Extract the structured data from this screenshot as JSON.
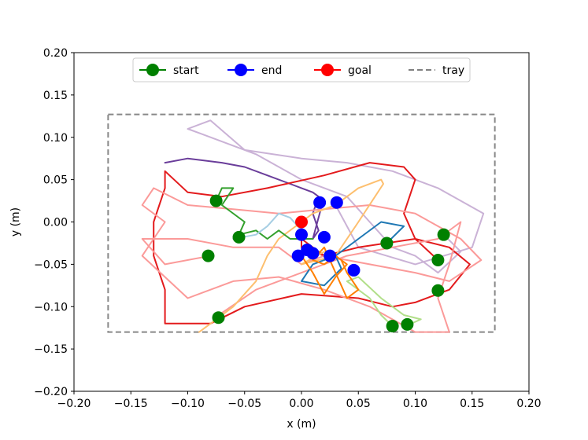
{
  "chart_data": {
    "type": "line",
    "title": "",
    "xlabel": "x (m)",
    "ylabel": "y (m)",
    "xlim": [
      -0.2,
      0.2
    ],
    "ylim": [
      -0.2,
      0.2
    ],
    "xticks": [
      -0.2,
      -0.15,
      -0.1,
      -0.05,
      0.0,
      0.05,
      0.1,
      0.15,
      0.2
    ],
    "yticks": [
      -0.2,
      -0.15,
      -0.1,
      -0.05,
      0.0,
      0.05,
      0.1,
      0.15,
      0.2
    ],
    "xtick_labels": [
      "−0.20",
      "−0.15",
      "−0.10",
      "−0.05",
      "0.00",
      "0.05",
      "0.10",
      "0.15",
      "0.20"
    ],
    "ytick_labels": [
      "−0.20",
      "−0.15",
      "−0.10",
      "−0.05",
      "0.00",
      "0.05",
      "0.10",
      "0.15",
      "0.20"
    ],
    "grid": false,
    "legend_placement": "top-center",
    "legend": [
      {
        "label": "start",
        "color": "#008000",
        "style": "marker-line"
      },
      {
        "label": "end",
        "color": "#0000ff",
        "style": "marker-line"
      },
      {
        "label": "goal",
        "color": "#ff0000",
        "style": "marker-line"
      },
      {
        "label": "tray",
        "color": "#808080",
        "style": "dashed"
      }
    ],
    "tray": {
      "x": [
        -0.17,
        0.17
      ],
      "y": [
        -0.13,
        0.127
      ],
      "color": "#888888"
    },
    "goal": {
      "x": 0.0,
      "y": 0.0
    },
    "series": [
      {
        "color": "#cab2d6",
        "points": [
          [
            0.125,
            -0.015
          ],
          [
            0.14,
            -0.035
          ],
          [
            0.12,
            -0.06
          ],
          [
            0.1,
            -0.04
          ],
          [
            0.08,
            -0.03
          ],
          [
            0.06,
            0.0
          ],
          [
            0.04,
            0.03
          ],
          [
            0.0,
            0.05
          ],
          [
            -0.04,
            0.08
          ],
          [
            -0.08,
            0.1
          ],
          [
            -0.1,
            0.11
          ],
          [
            -0.08,
            0.12
          ],
          [
            -0.05,
            0.085
          ],
          [
            0.0,
            0.075
          ],
          [
            0.04,
            0.07
          ],
          [
            0.08,
            0.06
          ],
          [
            0.12,
            0.04
          ],
          [
            0.16,
            0.01
          ],
          [
            0.15,
            -0.03
          ],
          [
            0.1,
            -0.05
          ],
          [
            0.05,
            -0.03
          ],
          [
            0.03,
            0.02
          ]
        ]
      },
      {
        "color": "#6a3d9a",
        "points": [
          [
            -0.12,
            0.07
          ],
          [
            -0.1,
            0.075
          ],
          [
            -0.07,
            0.07
          ],
          [
            -0.05,
            0.065
          ],
          [
            -0.03,
            0.055
          ],
          [
            -0.01,
            0.045
          ],
          [
            0.0,
            0.04
          ],
          [
            0.01,
            0.035
          ],
          [
            0.015,
            0.03
          ],
          [
            0.01,
            0.01
          ],
          [
            0.015,
            -0.01
          ],
          [
            0.01,
            -0.02
          ],
          [
            0.018,
            0.02
          ]
        ]
      },
      {
        "color": "#e31a1c",
        "points": [
          [
            0.12,
            -0.045
          ],
          [
            0.1,
            -0.02
          ],
          [
            0.09,
            0.01
          ],
          [
            0.1,
            0.05
          ],
          [
            0.09,
            0.065
          ],
          [
            0.06,
            0.07
          ],
          [
            0.02,
            0.055
          ],
          [
            -0.03,
            0.04
          ],
          [
            -0.07,
            0.03
          ],
          [
            -0.1,
            0.035
          ],
          [
            -0.12,
            0.06
          ],
          [
            -0.12,
            0.04
          ],
          [
            -0.13,
            0.0
          ],
          [
            -0.13,
            -0.04
          ],
          [
            -0.12,
            -0.08
          ],
          [
            -0.12,
            -0.12
          ],
          [
            -0.08,
            -0.12
          ],
          [
            -0.05,
            -0.1
          ],
          [
            0.0,
            -0.085
          ],
          [
            0.05,
            -0.09
          ],
          [
            0.08,
            -0.1
          ],
          [
            0.1,
            -0.095
          ],
          [
            0.13,
            -0.08
          ],
          [
            0.148,
            -0.05
          ],
          [
            0.13,
            -0.03
          ],
          [
            0.1,
            -0.02
          ],
          [
            0.05,
            -0.03
          ],
          [
            0.02,
            -0.04
          ],
          [
            0.0,
            -0.03
          ],
          [
            0.0,
            -0.02
          ],
          [
            0.02,
            -0.04
          ]
        ]
      },
      {
        "color": "#fb9a99",
        "points": [
          [
            -0.075,
            -0.112
          ],
          [
            -0.04,
            -0.08
          ],
          [
            0.0,
            -0.06
          ],
          [
            0.04,
            -0.04
          ],
          [
            0.08,
            -0.03
          ],
          [
            0.12,
            -0.02
          ],
          [
            0.14,
            0.0
          ],
          [
            0.13,
            -0.05
          ],
          [
            0.12,
            -0.09
          ],
          [
            0.13,
            -0.13
          ],
          [
            0.1,
            -0.13
          ],
          [
            0.06,
            -0.1
          ],
          [
            0.02,
            -0.08
          ],
          [
            -0.02,
            -0.065
          ],
          [
            -0.06,
            -0.07
          ],
          [
            -0.1,
            -0.09
          ],
          [
            -0.14,
            -0.04
          ],
          [
            -0.12,
            0.0
          ],
          [
            -0.14,
            0.02
          ],
          [
            -0.13,
            0.04
          ],
          [
            -0.1,
            0.02
          ],
          [
            -0.06,
            0.015
          ],
          [
            -0.02,
            0.01
          ],
          [
            0.02,
            0.015
          ],
          [
            0.06,
            0.02
          ],
          [
            0.1,
            0.01
          ],
          [
            0.14,
            -0.02
          ],
          [
            0.158,
            -0.045
          ],
          [
            0.13,
            -0.07
          ],
          [
            0.1,
            -0.06
          ],
          [
            0.06,
            -0.05
          ],
          [
            0.02,
            -0.04
          ],
          [
            0.0,
            -0.05
          ],
          [
            -0.02,
            -0.03
          ],
          [
            -0.06,
            -0.03
          ],
          [
            -0.1,
            -0.02
          ],
          [
            -0.14,
            -0.02
          ],
          [
            -0.12,
            -0.05
          ],
          [
            -0.08,
            -0.04
          ]
        ]
      },
      {
        "color": "#fdbf6f",
        "points": [
          [
            -0.09,
            -0.13
          ],
          [
            -0.06,
            -0.1
          ],
          [
            -0.04,
            -0.07
          ],
          [
            -0.03,
            -0.04
          ],
          [
            -0.02,
            -0.02
          ],
          [
            0.0,
            0.0
          ],
          [
            0.01,
            0.01
          ],
          [
            0.03,
            0.02
          ],
          [
            0.05,
            0.04
          ],
          [
            0.07,
            0.05
          ],
          [
            0.072,
            0.045
          ],
          [
            0.05,
            0.0
          ],
          [
            0.03,
            -0.04
          ],
          [
            0.0,
            -0.05
          ],
          [
            0.02,
            -0.035
          ]
        ]
      },
      {
        "color": "#33a02c",
        "points": [
          [
            -0.075,
            0.025
          ],
          [
            -0.07,
            0.04
          ],
          [
            -0.06,
            0.04
          ],
          [
            -0.07,
            0.02
          ],
          [
            -0.05,
            0.0
          ],
          [
            -0.055,
            -0.015
          ],
          [
            -0.04,
            -0.01
          ],
          [
            -0.03,
            -0.02
          ],
          [
            -0.02,
            -0.01
          ],
          [
            -0.01,
            -0.02
          ],
          [
            0.0,
            -0.02
          ],
          [
            0.01,
            -0.02
          ]
        ]
      },
      {
        "color": "#a6cee3",
        "points": [
          [
            -0.06,
            -0.02
          ],
          [
            -0.04,
            -0.015
          ],
          [
            -0.03,
            -0.005
          ],
          [
            -0.02,
            0.01
          ],
          [
            -0.01,
            0.005
          ],
          [
            0.0,
            -0.01
          ],
          [
            0.0,
            -0.02
          ]
        ]
      },
      {
        "color": "#1f78b4",
        "points": [
          [
            0.075,
            -0.025
          ],
          [
            0.09,
            -0.005
          ],
          [
            0.07,
            0.0
          ],
          [
            0.05,
            -0.02
          ],
          [
            0.03,
            -0.04
          ],
          [
            0.01,
            -0.05
          ],
          [
            0.0,
            -0.07
          ],
          [
            0.02,
            -0.075
          ],
          [
            0.035,
            -0.055
          ],
          [
            0.03,
            -0.04
          ]
        ]
      },
      {
        "color": "#b2df8a",
        "points": [
          [
            0.08,
            -0.123
          ],
          [
            0.07,
            -0.11
          ],
          [
            0.06,
            -0.09
          ],
          [
            0.04,
            -0.07
          ],
          [
            0.05,
            -0.065
          ],
          [
            0.07,
            -0.09
          ],
          [
            0.09,
            -0.11
          ],
          [
            0.105,
            -0.115
          ],
          [
            0.095,
            -0.121
          ]
        ]
      },
      {
        "color": "#ff7f00",
        "points": [
          [
            0.0,
            -0.04
          ],
          [
            0.01,
            -0.06
          ],
          [
            0.02,
            -0.085
          ],
          [
            0.03,
            -0.065
          ],
          [
            0.04,
            -0.05
          ],
          [
            0.03,
            -0.04
          ],
          [
            0.02,
            -0.05
          ],
          [
            0.01,
            -0.045
          ],
          [
            0.02,
            -0.03
          ],
          [
            0.03,
            -0.06
          ],
          [
            0.04,
            -0.09
          ],
          [
            0.05,
            -0.08
          ],
          [
            0.04,
            -0.06
          ],
          [
            0.035,
            -0.045
          ]
        ]
      }
    ],
    "start_points": [
      [
        -0.075,
        0.025
      ],
      [
        -0.082,
        -0.04
      ],
      [
        -0.073,
        -0.113
      ],
      [
        -0.055,
        -0.018
      ],
      [
        0.08,
        -0.123
      ],
      [
        0.093,
        -0.121
      ],
      [
        0.12,
        -0.045
      ],
      [
        0.12,
        -0.081
      ],
      [
        0.125,
        -0.015
      ],
      [
        0.075,
        -0.025
      ]
    ],
    "end_points": [
      [
        0.016,
        0.023
      ],
      [
        0.031,
        0.023
      ],
      [
        0.0,
        -0.015
      ],
      [
        0.02,
        -0.018
      ],
      [
        0.005,
        -0.033
      ],
      [
        0.025,
        -0.04
      ],
      [
        -0.003,
        -0.04
      ],
      [
        0.046,
        -0.057
      ],
      [
        0.01,
        -0.037
      ]
    ]
  }
}
